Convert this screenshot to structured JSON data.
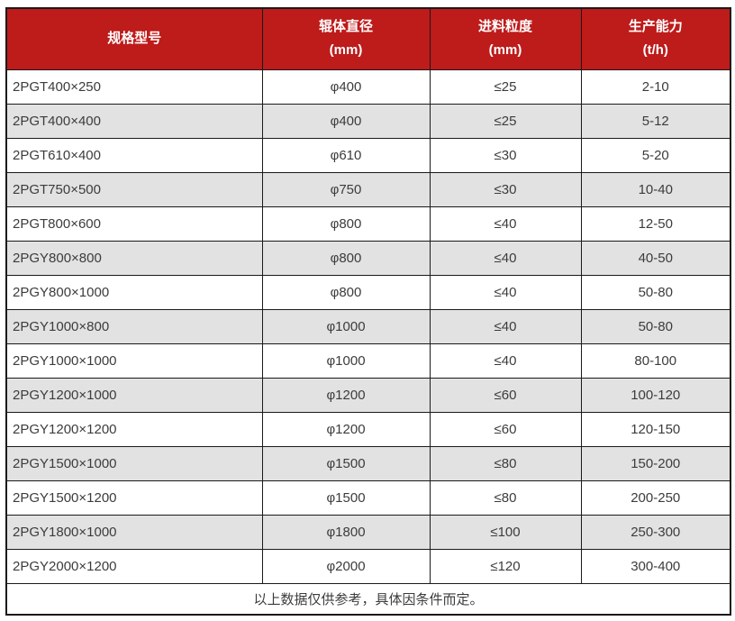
{
  "chart_data": {
    "type": "table",
    "columns": [
      {
        "title": "规格型号",
        "unit": ""
      },
      {
        "title": "辊体直径",
        "unit": "(mm)"
      },
      {
        "title": "进料粒度",
        "unit": "(mm)"
      },
      {
        "title": "生产能力",
        "unit": "(t/h)"
      }
    ],
    "rows": [
      [
        "2PGT400×250",
        "φ400",
        "≤25",
        "2-10"
      ],
      [
        "2PGT400×400",
        "φ400",
        "≤25",
        "5-12"
      ],
      [
        "2PGT610×400",
        "φ610",
        "≤30",
        "5-20"
      ],
      [
        "2PGT750×500",
        "φ750",
        "≤30",
        "10-40"
      ],
      [
        "2PGT800×600",
        "φ800",
        "≤40",
        "12-50"
      ],
      [
        "2PGY800×800",
        "φ800",
        "≤40",
        "40-50"
      ],
      [
        "2PGY800×1000",
        "φ800",
        "≤40",
        "50-80"
      ],
      [
        "2PGY1000×800",
        "φ1000",
        "≤40",
        "50-80"
      ],
      [
        "2PGY1000×1000",
        "φ1000",
        "≤40",
        "80-100"
      ],
      [
        "2PGY1200×1000",
        "φ1200",
        "≤60",
        "100-120"
      ],
      [
        "2PGY1200×1200",
        "φ1200",
        "≤60",
        "120-150"
      ],
      [
        "2PGY1500×1000",
        "φ1500",
        "≤80",
        "150-200"
      ],
      [
        "2PGY1500×1200",
        "φ1500",
        "≤80",
        "200-250"
      ],
      [
        "2PGY1800×1000",
        "φ1800",
        "≤100",
        "250-300"
      ],
      [
        "2PGY2000×1200",
        "φ2000",
        "≤120",
        "300-400"
      ]
    ],
    "footnote": "以上数据仅供参考，具体因条件而定。",
    "style": {
      "header_bg": "#be1b1b",
      "header_text": "#ffffff",
      "alt_row_bg": "#e2e2e2",
      "border_color": "#1a1a1a",
      "text_color": "#3c3c3c"
    }
  }
}
